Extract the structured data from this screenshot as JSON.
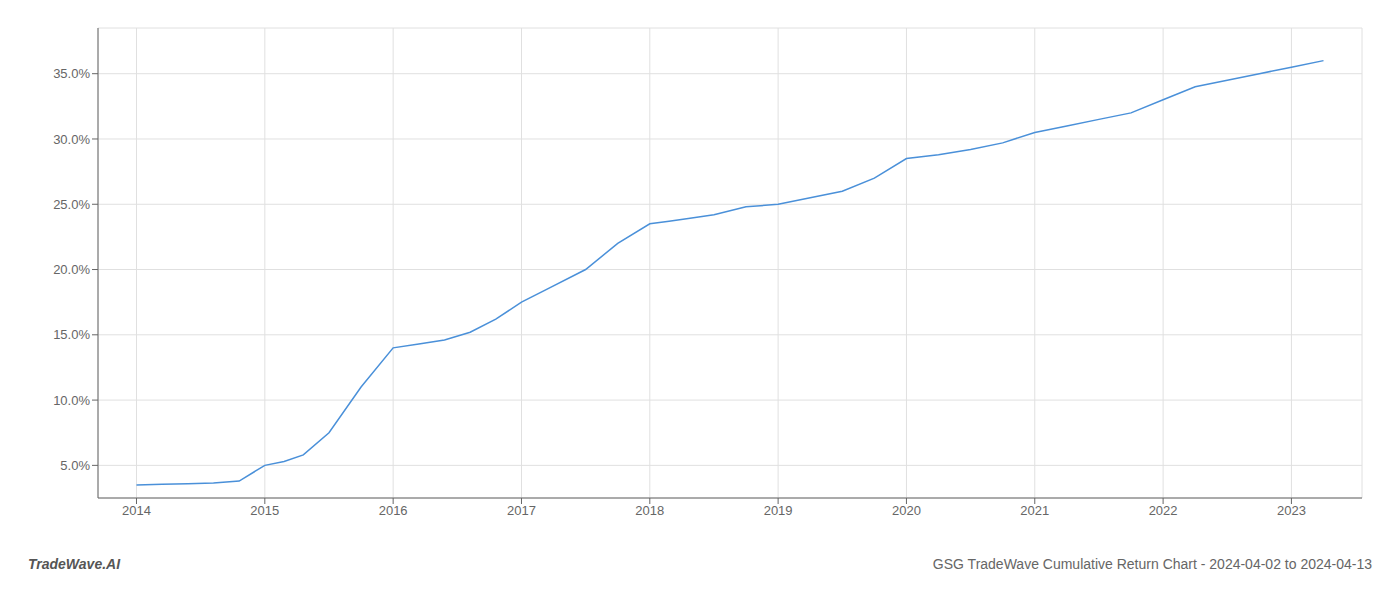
{
  "chart_data": {
    "type": "line",
    "title": "GSG TradeWave Cumulative Return Chart - 2024-04-02 to 2024-04-13",
    "annotations": [
      "TradeWave.AI"
    ],
    "x": [
      2014.0,
      2014.2,
      2014.4,
      2014.6,
      2014.8,
      2015.0,
      2015.15,
      2015.3,
      2015.5,
      2015.75,
      2016.0,
      2016.2,
      2016.4,
      2016.6,
      2016.8,
      2017.0,
      2017.2,
      2017.5,
      2017.75,
      2018.0,
      2018.15,
      2018.3,
      2018.5,
      2018.75,
      2019.0,
      2019.25,
      2019.5,
      2019.75,
      2020.0,
      2020.25,
      2020.5,
      2020.75,
      2021.0,
      2021.25,
      2021.5,
      2021.75,
      2022.0,
      2022.25,
      2022.5,
      2022.75,
      2023.0,
      2023.25
    ],
    "values": [
      3.5,
      3.55,
      3.6,
      3.65,
      3.8,
      5.0,
      5.3,
      5.8,
      7.5,
      11.0,
      14.0,
      14.3,
      14.6,
      15.2,
      16.2,
      17.5,
      18.5,
      20.0,
      22.0,
      23.5,
      23.7,
      23.9,
      24.2,
      24.8,
      25.0,
      25.5,
      26.0,
      27.0,
      28.5,
      28.8,
      29.2,
      29.7,
      30.5,
      31.0,
      31.5,
      32.0,
      33.0,
      34.0,
      34.5,
      35.0,
      35.5,
      36.0
    ],
    "color": "#4a90d9",
    "xlim": [
      2013.7,
      2023.55
    ],
    "ylim": [
      2.5,
      38.5
    ],
    "xticks": [
      2014,
      2015,
      2016,
      2017,
      2018,
      2019,
      2020,
      2021,
      2022,
      2023
    ],
    "yticks": [
      {
        "value": 5.0,
        "label": "5.0%"
      },
      {
        "value": 10.0,
        "label": "10.0%"
      },
      {
        "value": 15.0,
        "label": "15.0%"
      },
      {
        "value": 20.0,
        "label": "20.0%"
      },
      {
        "value": 25.0,
        "label": "25.0%"
      },
      {
        "value": 30.0,
        "label": "30.0%"
      },
      {
        "value": 35.0,
        "label": "35.0%"
      }
    ],
    "grid": true
  }
}
